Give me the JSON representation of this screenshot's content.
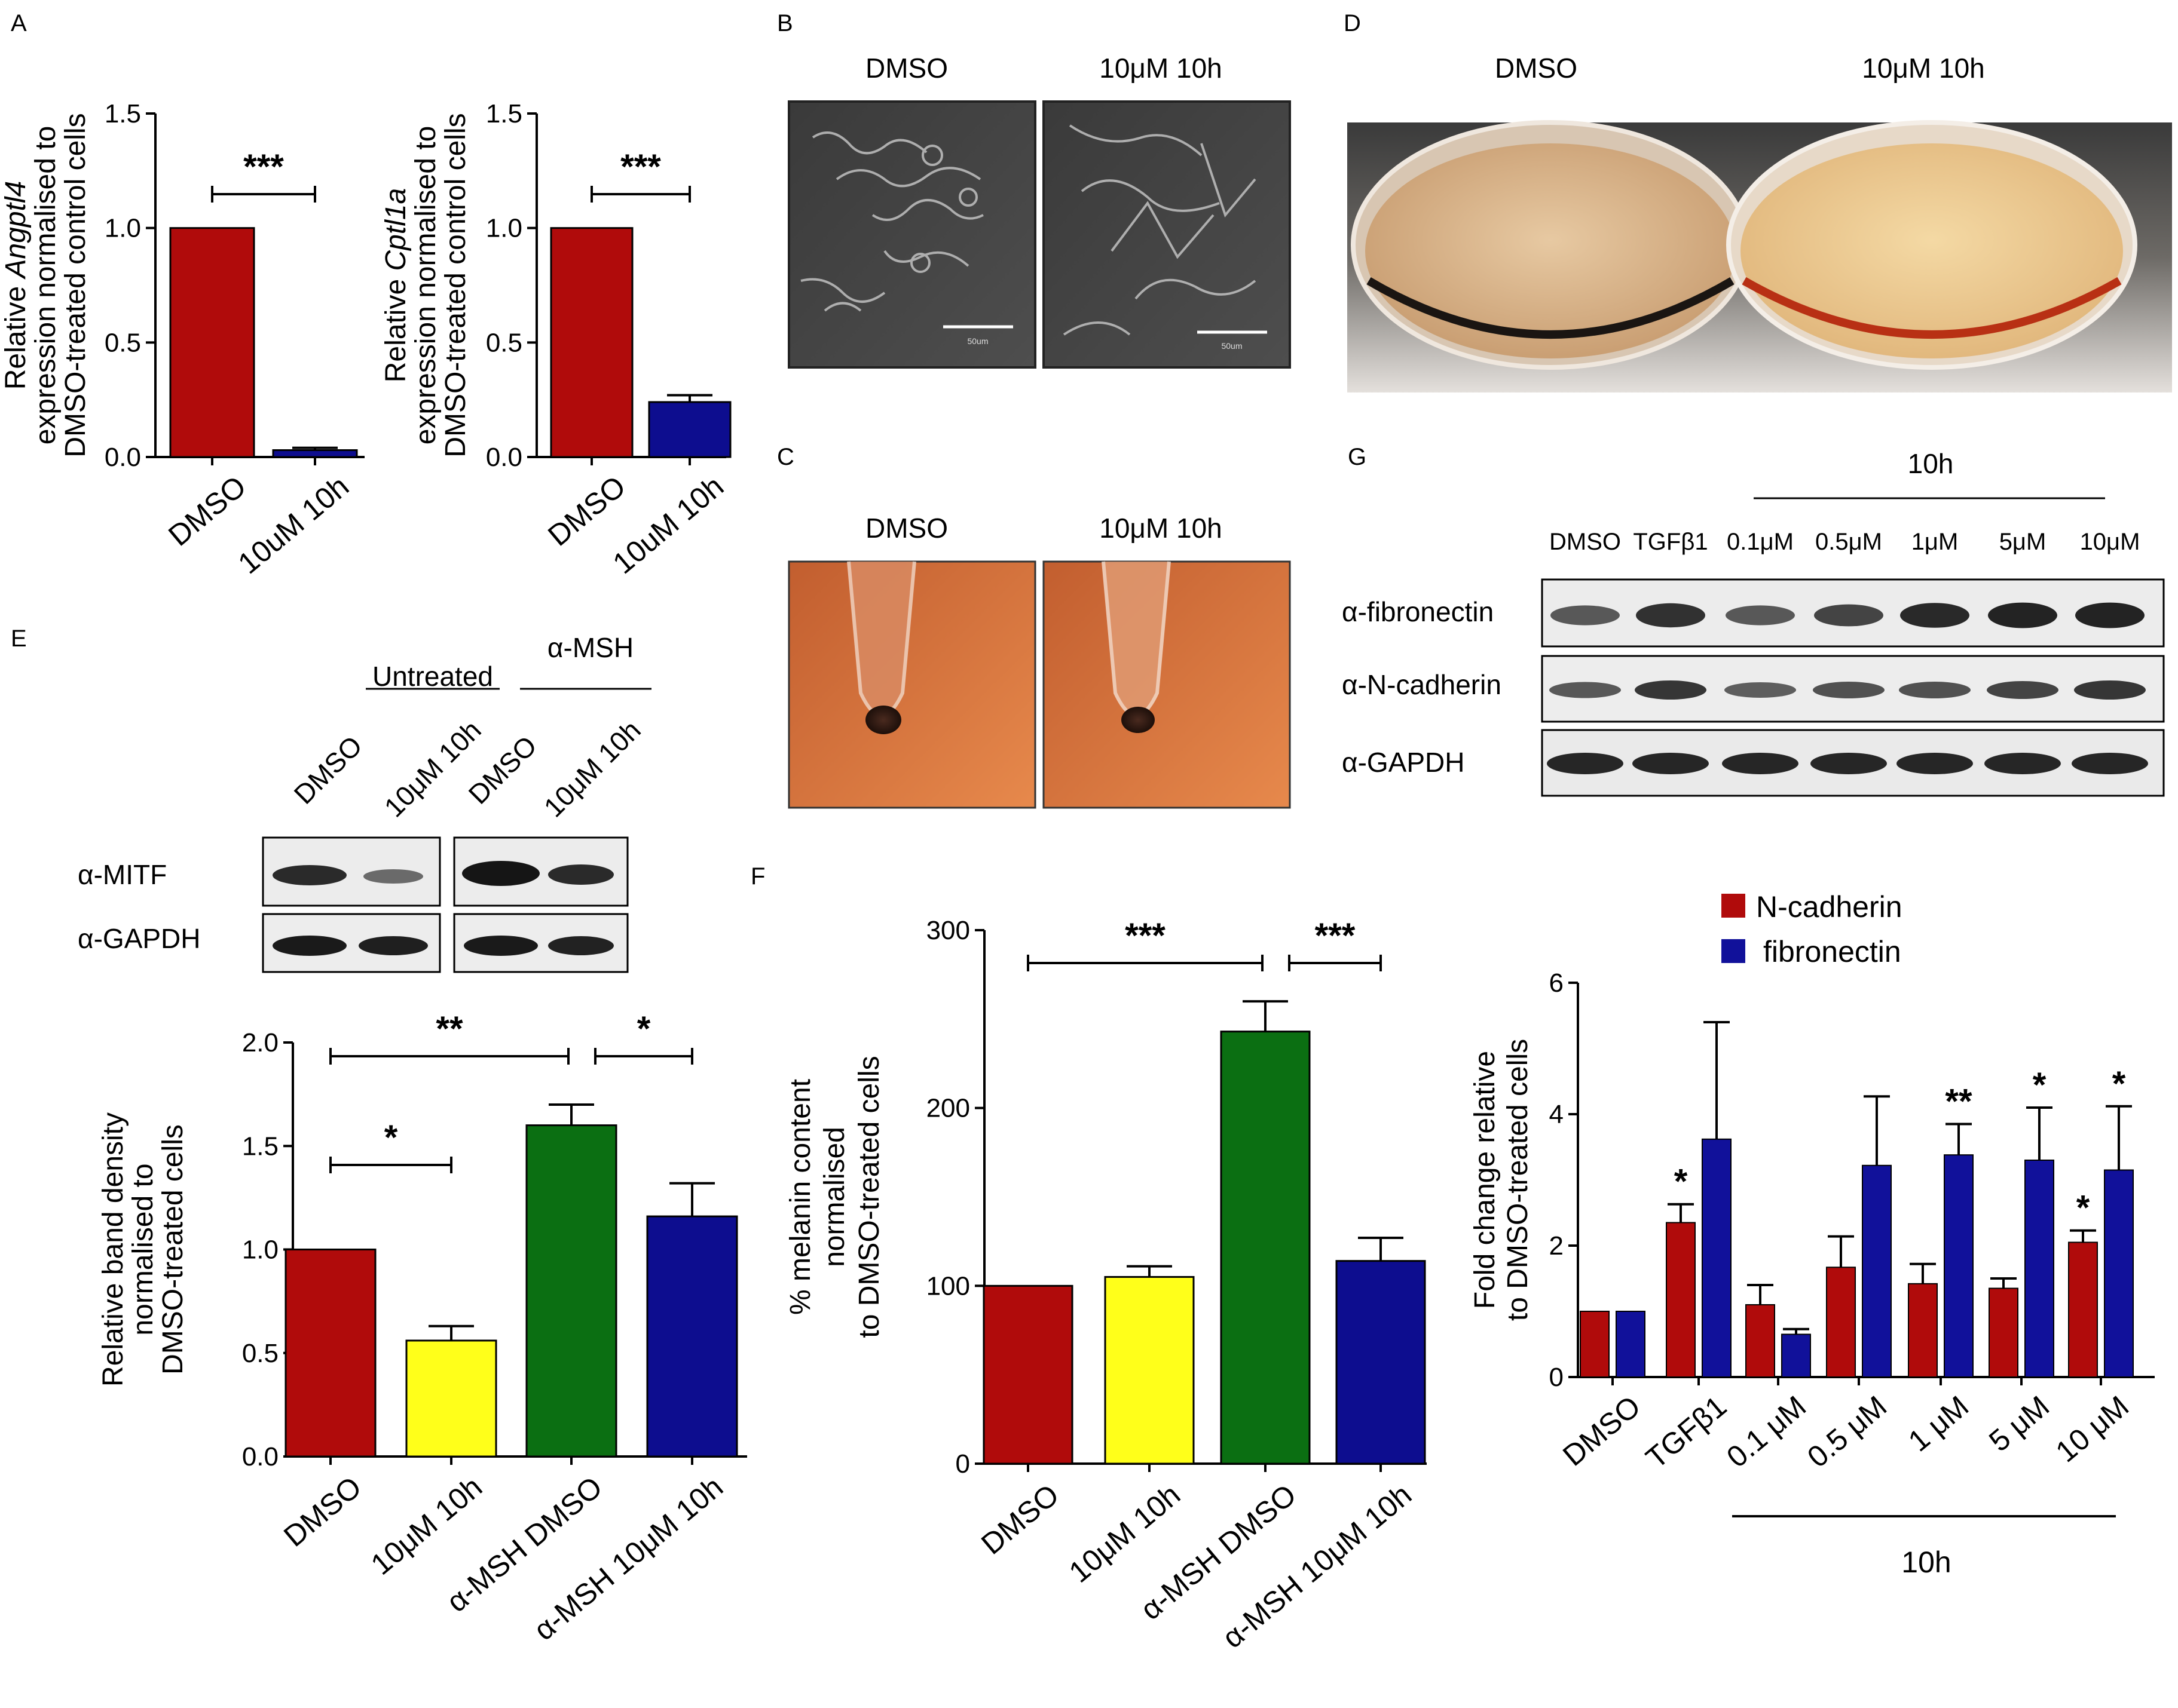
{
  "colors": {
    "red": "#b00b0b",
    "yellow": "#ffff1a",
    "green": "#0b6f12",
    "navy": "#0d0d8f",
    "blue": "#11119a"
  },
  "panels": {
    "A": "A",
    "B": "B",
    "C": "C",
    "D": "D",
    "E": "E",
    "F": "F",
    "G": "G"
  },
  "panel_b": {
    "labels": [
      "DMSO",
      "10μM 10h"
    ],
    "scalebar": [
      "50um",
      "50um"
    ]
  },
  "panel_c": {
    "labels": [
      "DMSO",
      "10μM 10h"
    ]
  },
  "panel_d": {
    "labels": [
      "DMSO",
      "10μM 10h"
    ]
  },
  "panel_e_blot": {
    "group_labels": [
      "Untreated",
      "α-MSH"
    ],
    "lanes": [
      "DMSO",
      "10μM 10h",
      "DMSO",
      "10μM 10h"
    ],
    "rows": [
      "α-MITF",
      "α-GAPDH"
    ]
  },
  "panel_g_blot": {
    "header": "10h",
    "lanes": [
      "DMSO",
      "TGFβ1",
      "0.1μM",
      "0.5μM",
      "1μM",
      "5μM",
      "10μM"
    ],
    "rows": [
      "α-fibronectin",
      "α-N-cadherin",
      "α-GAPDH"
    ]
  },
  "chart_data": [
    {
      "id": "A-left",
      "type": "bar",
      "categories": [
        "DMSO",
        "10uM 10h"
      ],
      "values": [
        1.0,
        0.03
      ],
      "errors": [
        0,
        0.01
      ],
      "colors": [
        "#b00b0b",
        "#0d0d8f"
      ],
      "ylabel": [
        "Relative Angptl4",
        "expression normalised to",
        "DMSO-treated control cells"
      ],
      "ylim": [
        0,
        1.5
      ],
      "yticks": [
        "0.0",
        "0.5",
        "1.0",
        "1.5"
      ],
      "significance": [
        {
          "label": "***",
          "from": 0,
          "to": 1
        }
      ]
    },
    {
      "id": "A-right",
      "type": "bar",
      "categories": [
        "DMSO",
        "10uM 10h"
      ],
      "values": [
        1.0,
        0.24
      ],
      "errors": [
        0,
        0.03
      ],
      "colors": [
        "#b00b0b",
        "#0d0d8f"
      ],
      "ylabel": [
        "Relative Cptl1a",
        "expression normalised to",
        "DMSO-treated control cells"
      ],
      "ylim": [
        0,
        1.5
      ],
      "yticks": [
        "0.0",
        "0.5",
        "1.0",
        "1.5"
      ],
      "significance": [
        {
          "label": "***",
          "from": 0,
          "to": 1
        }
      ]
    },
    {
      "id": "E",
      "type": "bar",
      "categories": [
        "DMSO",
        "10μM 10h",
        "α-MSH DMSO",
        "α-MSH 10μM 10h"
      ],
      "values": [
        1.0,
        0.56,
        1.6,
        1.16
      ],
      "errors": [
        0,
        0.07,
        0.1,
        0.16
      ],
      "colors": [
        "#b00b0b",
        "#ffff1a",
        "#0b6f12",
        "#0d0d8f"
      ],
      "ylabel": [
        "Relative band density",
        "normalised to",
        "DMSO-treated cells"
      ],
      "ylim": [
        0,
        2.0
      ],
      "yticks": [
        "0.0",
        "0.5",
        "1.0",
        "1.5",
        "2.0"
      ],
      "significance": [
        {
          "label": "**",
          "from": 0,
          "to": 2
        },
        {
          "label": "*",
          "from": 2,
          "to": 3
        },
        {
          "label": "*",
          "from": 0,
          "to": 1
        }
      ]
    },
    {
      "id": "F",
      "type": "bar",
      "categories": [
        "DMSO",
        "10μM 10h",
        "α-MSH DMSO",
        "α-MSH 10μM 10h"
      ],
      "values": [
        100,
        105,
        243,
        114
      ],
      "errors": [
        0,
        6,
        17,
        13
      ],
      "colors": [
        "#b00b0b",
        "#ffff1a",
        "#0b6f12",
        "#0d0d8f"
      ],
      "ylabel": [
        "% melanin content",
        "normalised",
        "to DMSO-treated cells"
      ],
      "ylim": [
        0,
        300
      ],
      "yticks": [
        "0",
        "100",
        "200",
        "300"
      ],
      "significance": [
        {
          "label": "***",
          "from": 0,
          "to": 2
        },
        {
          "label": "***",
          "from": 2,
          "to": 3
        }
      ]
    },
    {
      "id": "G-chart",
      "type": "bar",
      "categories": [
        "DMSO",
        "TGFβ1",
        "0.1 μM",
        "0.5 μM",
        "1 μM",
        "5 μM",
        "10 μM"
      ],
      "series": [
        {
          "name": "N-cadherin",
          "color": "#b00b0b",
          "values": [
            1.0,
            2.35,
            1.1,
            1.67,
            1.42,
            1.35,
            2.05
          ],
          "errors": [
            0,
            0.28,
            0.3,
            0.47,
            0.3,
            0.15,
            0.18
          ]
        },
        {
          "name": "fibronectin",
          "color": "#11119a",
          "values": [
            1.0,
            3.62,
            0.65,
            3.22,
            3.38,
            3.3,
            3.15
          ],
          "errors": [
            0,
            1.78,
            0.08,
            1.05,
            0.47,
            0.8,
            0.97
          ]
        }
      ],
      "stars": [
        {
          "cat": 1,
          "series": 0,
          "label": "*"
        },
        {
          "cat": 4,
          "series": 1,
          "label": "**"
        },
        {
          "cat": 5,
          "series": 1,
          "label": "*"
        },
        {
          "cat": 6,
          "series": 0,
          "label": "*"
        },
        {
          "cat": 6,
          "series": 1,
          "label": "*"
        }
      ],
      "ylabel": [
        "Fold change relative",
        "to DMSO-treated cells"
      ],
      "ylim": [
        0,
        6
      ],
      "yticks": [
        "0",
        "2",
        "4",
        "6"
      ],
      "group_label": "10h"
    }
  ]
}
